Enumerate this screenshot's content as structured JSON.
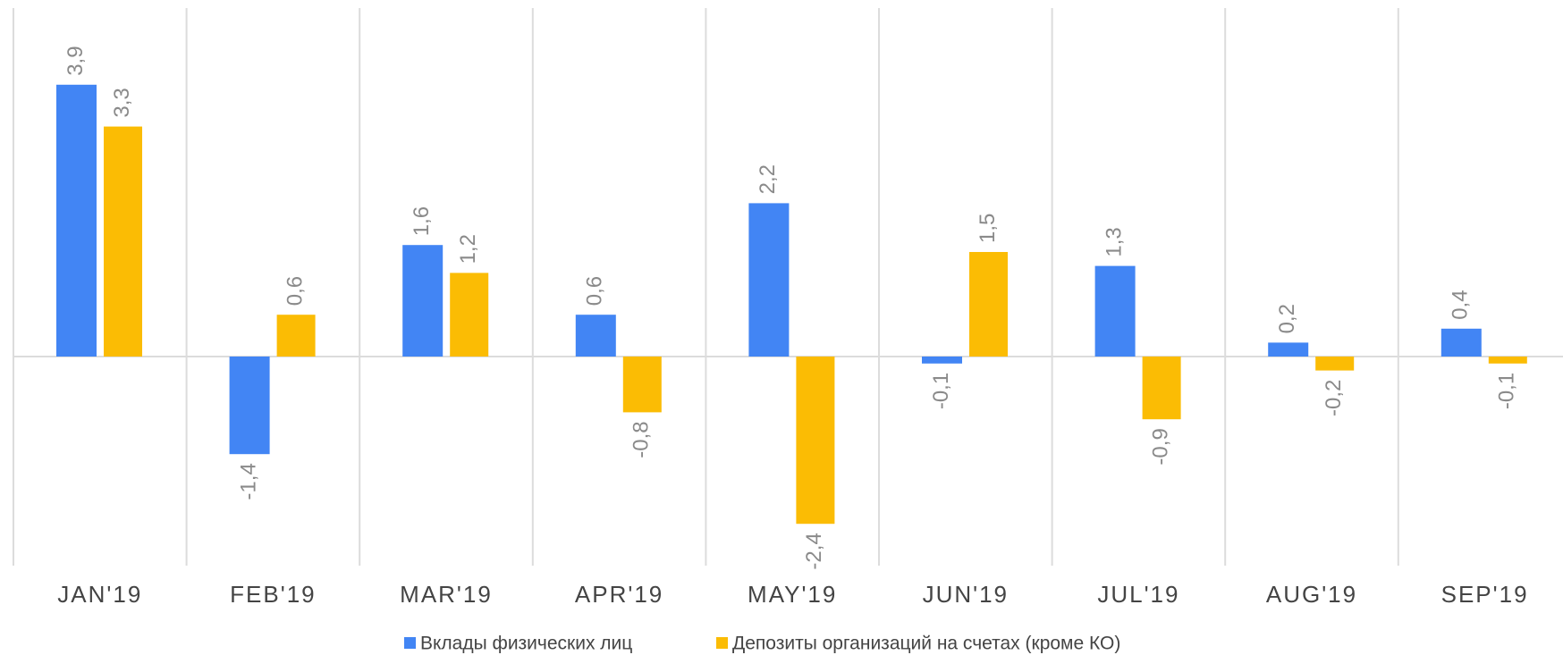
{
  "chart_data": {
    "type": "bar",
    "categories": [
      "JAN'19",
      "FEB'19",
      "MAR'19",
      "APR'19",
      "MAY'19",
      "JUN'19",
      "JUL'19",
      "AUG'19",
      "SEP'19"
    ],
    "series": [
      {
        "name": "Вклады физических лиц",
        "color": "#4285f4",
        "values": [
          3.9,
          -1.4,
          1.6,
          0.6,
          2.2,
          -0.1,
          1.3,
          0.2,
          0.4
        ],
        "value_labels": [
          "3,9",
          "-1,4",
          "1,6",
          "0,6",
          "2,2",
          "-0,1",
          "1,3",
          "0,2",
          "0,4"
        ]
      },
      {
        "name": "Депозиты организаций на счетах (кроме КО)",
        "color": "#fbbc04",
        "values": [
          3.3,
          0.6,
          1.2,
          -0.8,
          -2.4,
          1.5,
          -0.9,
          -0.2,
          -0.1
        ],
        "value_labels": [
          "3,3",
          "0,6",
          "1,2",
          "-0,8",
          "-2,4",
          "1,5",
          "-0,9",
          "-0,2",
          "-0,1"
        ]
      }
    ],
    "ylim": [
      -3,
      5
    ],
    "legend": "bottom"
  }
}
